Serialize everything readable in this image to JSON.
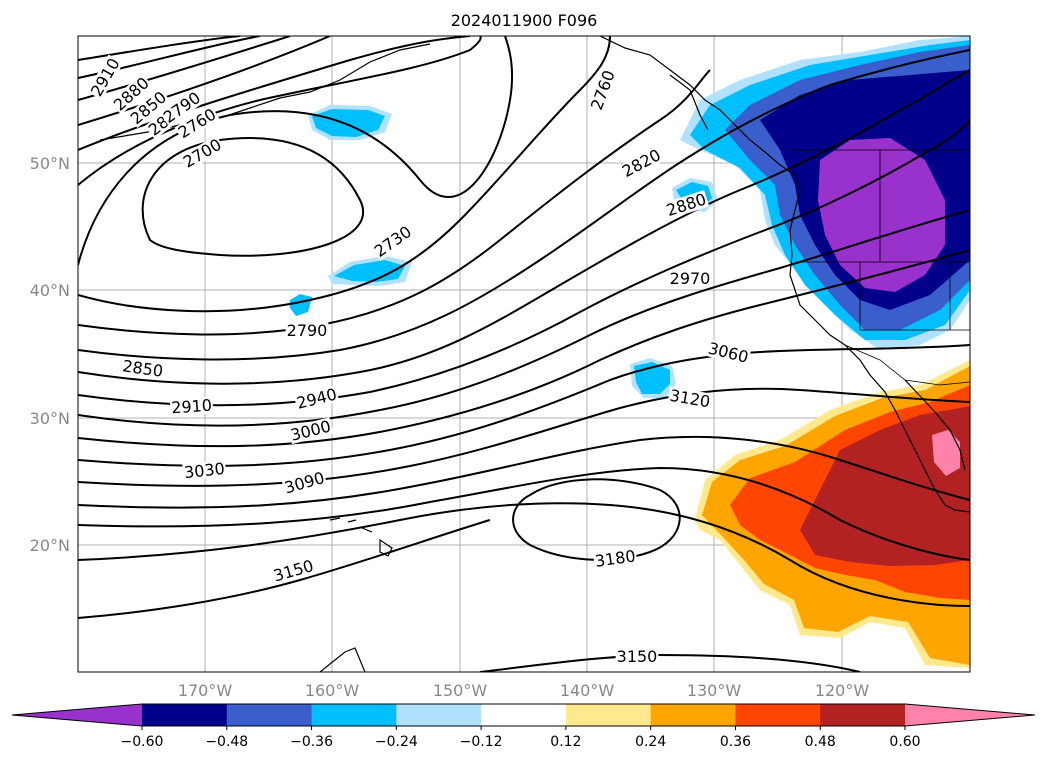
{
  "title": "2024011900 F096",
  "map": {
    "lon_labels": [
      "170°W",
      "160°W",
      "150°W",
      "140°W",
      "130°W",
      "120°W"
    ],
    "lat_labels": [
      "50°N",
      "40°N",
      "30°N",
      "20°N"
    ]
  },
  "contour_labels": [
    "2910",
    "2880",
    "2850",
    "2820",
    "2790",
    "2760",
    "2700",
    "2730",
    "2790",
    "2850",
    "2910",
    "2940",
    "3000",
    "3030",
    "3090",
    "3150",
    "2760",
    "2820",
    "2880",
    "2970",
    "3060",
    "3120",
    "3180",
    "3150"
  ],
  "colorbar": {
    "colors": [
      "#9932cc",
      "#00008b",
      "#3a5fcd",
      "#00bfff",
      "#b0e2ff",
      "#ffffff",
      "#ffe98c",
      "#ffa500",
      "#ff4500",
      "#b22222",
      "#ff82ab"
    ],
    "ticks": [
      "−0.60",
      "−0.48",
      "−0.36",
      "−0.24",
      "−0.12",
      "0.12",
      "0.24",
      "0.36",
      "0.48",
      "0.60"
    ]
  }
}
